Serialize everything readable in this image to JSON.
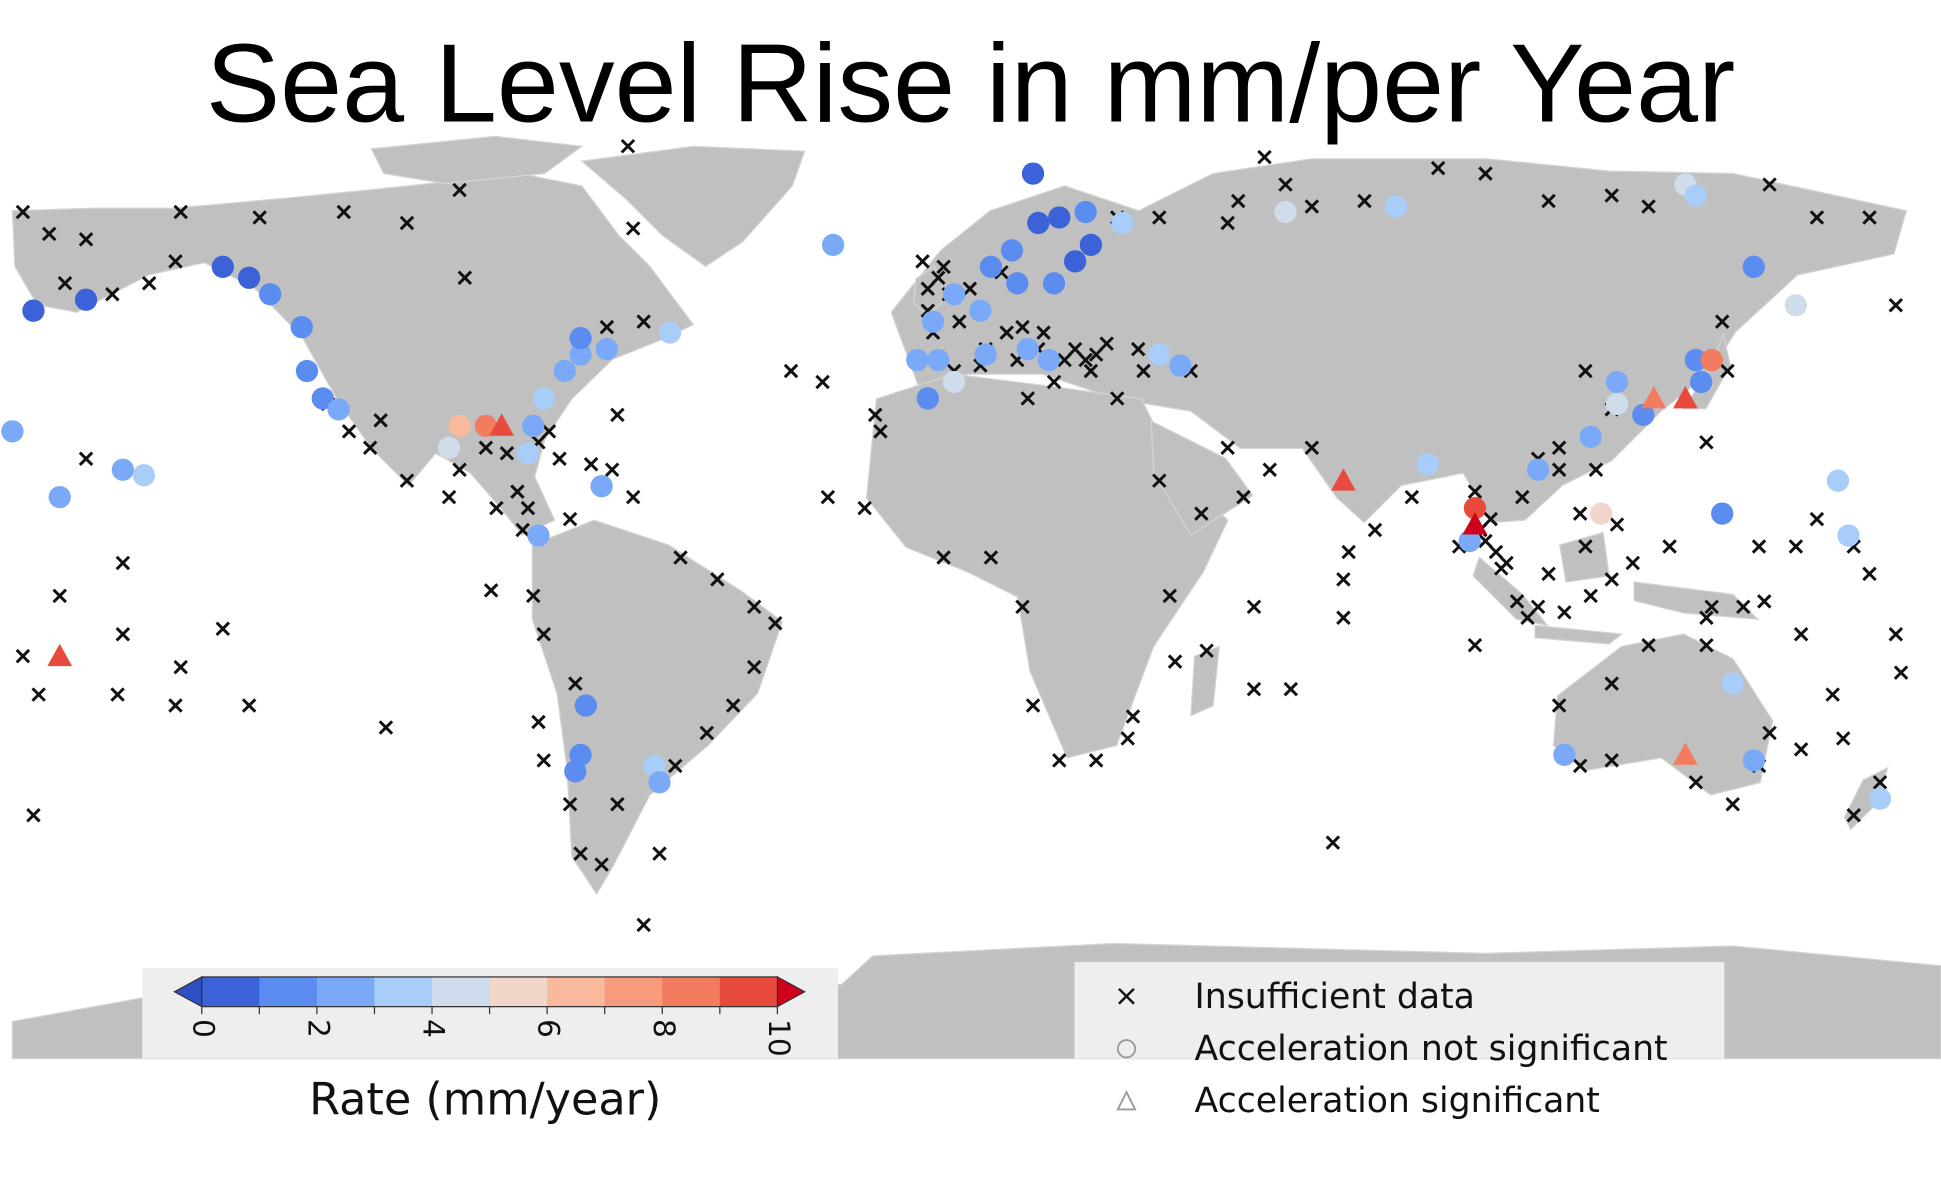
{
  "chart_data": {
    "type": "scatter",
    "title": "Sea Level Rise in mm/per Year",
    "colorbar": {
      "label": "Rate (mm/year)",
      "range": [
        0,
        10
      ],
      "ticks": [
        "0",
        "2",
        "4",
        "6",
        "8",
        "10"
      ],
      "colors": [
        "#3b62d9",
        "#5b8cf0",
        "#7aa9f7",
        "#a9cdf9",
        "#cfdcec",
        "#f1d6cc",
        "#f9b99d",
        "#f89b7c",
        "#f37b60",
        "#e84b3e"
      ],
      "under_color": "#2f4fc6",
      "over_color": "#d0021b"
    },
    "legend": {
      "placement": "bottom-right",
      "items": [
        {
          "marker": "x",
          "label": "Insufficient data"
        },
        {
          "marker": "circle",
          "label": "Acceleration not significant"
        },
        {
          "marker": "triangle",
          "label": "Acceleration significant"
        }
      ]
    },
    "insufficient_data": [
      [
        -178,
        65
      ],
      [
        -173,
        61
      ],
      [
        -166,
        60
      ],
      [
        -148,
        65
      ],
      [
        -133,
        64
      ],
      [
        -117,
        65
      ],
      [
        -105,
        63
      ],
      [
        -63,
        77
      ],
      [
        -62,
        62
      ],
      [
        -95,
        69
      ],
      [
        -94,
        53
      ],
      [
        -154,
        52
      ],
      [
        -149,
        56
      ],
      [
        -161,
        50
      ],
      [
        -116,
        25
      ],
      [
        -112,
        22
      ],
      [
        -105,
        16
      ],
      [
        -97,
        13
      ],
      [
        -88,
        11
      ],
      [
        -83,
        7
      ],
      [
        -74,
        9
      ],
      [
        -62,
        13
      ],
      [
        -65,
        28
      ],
      [
        -60,
        45
      ],
      [
        -67,
        44
      ],
      [
        -53,
        2
      ],
      [
        -46,
        -2
      ],
      [
        -39,
        -7
      ],
      [
        -35,
        -10
      ],
      [
        -39,
        -18
      ],
      [
        -43,
        -25
      ],
      [
        -48,
        -30
      ],
      [
        -54,
        -36
      ],
      [
        -65,
        -43
      ],
      [
        -68,
        -54
      ],
      [
        -72,
        -52
      ],
      [
        -60,
        -65
      ],
      [
        -57,
        -52
      ],
      [
        -73,
        -21
      ],
      [
        -79,
        -12
      ],
      [
        -81,
        -5
      ],
      [
        -80,
        -28
      ],
      [
        -79,
        -35
      ],
      [
        -74,
        -43
      ],
      [
        -89,
        -4
      ],
      [
        -109,
        -29
      ],
      [
        -135,
        -25
      ],
      [
        -149,
        -25
      ],
      [
        -148,
        -18
      ],
      [
        -159,
        -12
      ],
      [
        -171,
        -5
      ],
      [
        -178,
        -16
      ],
      [
        -175,
        -23
      ],
      [
        -160,
        -23
      ],
      [
        -176,
        -45
      ],
      [
        -140,
        -11
      ],
      [
        -159,
        1
      ],
      [
        -166,
        20
      ],
      [
        -170,
        52
      ],
      [
        -32,
        36
      ],
      [
        -26,
        34
      ],
      [
        -16,
        28
      ],
      [
        -15,
        25
      ],
      [
        -25,
        13
      ],
      [
        -18,
        11
      ],
      [
        -3,
        2
      ],
      [
        6,
        2
      ],
      [
        12,
        -7
      ],
      [
        14,
        -25
      ],
      [
        19,
        -35
      ],
      [
        26,
        -35
      ],
      [
        32,
        -31
      ],
      [
        33,
        -27
      ],
      [
        40,
        -5
      ],
      [
        41,
        -17
      ],
      [
        47,
        -15
      ],
      [
        56,
        -22
      ],
      [
        63,
        -22
      ],
      [
        56,
        -7
      ],
      [
        73,
        -9
      ],
      [
        71,
        -50
      ],
      [
        73,
        -2
      ],
      [
        74,
        3
      ],
      [
        79,
        7
      ],
      [
        67,
        22
      ],
      [
        59,
        18
      ],
      [
        51,
        22
      ],
      [
        54,
        13
      ],
      [
        46,
        10
      ],
      [
        38,
        16
      ],
      [
        30,
        31
      ],
      [
        25,
        36
      ],
      [
        18,
        34
      ],
      [
        11,
        38
      ],
      [
        4,
        37
      ],
      [
        -7,
        56
      ],
      [
        -6,
        51
      ],
      [
        -5,
        43
      ],
      [
        -1,
        36
      ],
      [
        13,
        31
      ],
      [
        34,
        40
      ],
      [
        44,
        36
      ],
      [
        98,
        -14
      ],
      [
        103,
        0
      ],
      [
        108,
        -9
      ],
      [
        112,
        -1
      ],
      [
        119,
        4
      ],
      [
        124,
        -2
      ],
      [
        128,
        1
      ],
      [
        135,
        4
      ],
      [
        131,
        -14
      ],
      [
        142,
        -9
      ],
      [
        149,
        -7
      ],
      [
        152,
        4
      ],
      [
        159,
        4
      ],
      [
        163,
        9
      ],
      [
        170,
        4
      ],
      [
        173,
        -1
      ],
      [
        166,
        -23
      ],
      [
        168,
        -31
      ],
      [
        160,
        -33
      ],
      [
        154,
        -30
      ],
      [
        152,
        -36
      ],
      [
        147,
        -43
      ],
      [
        140,
        -39
      ],
      [
        124,
        -35
      ],
      [
        118,
        -36
      ],
      [
        114,
        -25
      ],
      [
        124,
        -21
      ],
      [
        142,
        -14
      ],
      [
        153,
        -6
      ],
      [
        160,
        -12
      ],
      [
        143,
        -7
      ],
      [
        178,
        -12
      ],
      [
        179,
        -19
      ],
      [
        175,
        -39
      ],
      [
        170,
        -45
      ],
      [
        178,
        48
      ],
      [
        173,
        64
      ],
      [
        163,
        64
      ],
      [
        154,
        70
      ],
      [
        131,
        66
      ],
      [
        124,
        68
      ],
      [
        112,
        67
      ],
      [
        100,
        72
      ],
      [
        91,
        73
      ],
      [
        77,
        67
      ],
      [
        67,
        66
      ],
      [
        62,
        70
      ],
      [
        58,
        75
      ],
      [
        51,
        63
      ],
      [
        53,
        67
      ],
      [
        38,
        64
      ],
      [
        30,
        64
      ],
      [
        119,
        36
      ],
      [
        124,
        29
      ],
      [
        121,
        18
      ],
      [
        114,
        18
      ],
      [
        107,
        13
      ],
      [
        98,
        14
      ],
      [
        95,
        4
      ],
      [
        86,
        13
      ],
      [
        142,
        23
      ],
      [
        146,
        36
      ],
      [
        145,
        45
      ],
      [
        0,
        45
      ],
      [
        5,
        40
      ],
      [
        12,
        44
      ],
      [
        15,
        40
      ],
      [
        20,
        38
      ],
      [
        24,
        38
      ],
      [
        28,
        41
      ],
      [
        35,
        36
      ],
      [
        -2,
        50
      ],
      [
        8,
        54
      ],
      [
        -4,
        53
      ],
      [
        2,
        51
      ],
      [
        -3,
        55
      ],
      [
        -6,
        47
      ],
      [
        9,
        43
      ],
      [
        16,
        43
      ],
      [
        22,
        40
      ],
      [
        26,
        39
      ],
      [
        -90,
        22
      ],
      [
        -86,
        21
      ],
      [
        -80,
        23
      ],
      [
        -78,
        25
      ],
      [
        -76,
        20
      ],
      [
        -70,
        19
      ],
      [
        -66,
        18
      ],
      [
        -95,
        18
      ],
      [
        100,
        5
      ],
      [
        102,
        3
      ],
      [
        104,
        1
      ],
      [
        106,
        -6
      ],
      [
        110,
        -7
      ],
      [
        115,
        -8
      ],
      [
        120,
        -5
      ],
      [
        125,
        8
      ],
      [
        122,
        10
      ],
      [
        118,
        10
      ],
      [
        114,
        22
      ],
      [
        110,
        20
      ],
      [
        99,
        7
      ],
      [
        101,
        9
      ],
      [
        -84,
        14
      ],
      [
        -82,
        11
      ],
      [
        -120,
        30
      ],
      [
        -110,
        27
      ]
    ],
    "not_significant": [
      [
        -176,
        47,
        0.5
      ],
      [
        -166,
        49,
        0.5
      ],
      [
        -140,
        55,
        0.5
      ],
      [
        -135,
        53,
        0.5
      ],
      [
        -131,
        50,
        1
      ],
      [
        -125,
        44,
        1
      ],
      [
        -124,
        36,
        1
      ],
      [
        -121,
        31,
        1.5
      ],
      [
        -118,
        29,
        2.5
      ],
      [
        -180,
        25,
        2.5
      ],
      [
        -159,
        18,
        2.5
      ],
      [
        -155,
        17,
        3.5
      ],
      [
        -171,
        13,
        2.5
      ],
      [
        -97,
        22,
        4.5
      ],
      [
        -95,
        26,
        6.5
      ],
      [
        -90,
        26,
        8.5
      ],
      [
        -82,
        21,
        3
      ],
      [
        -81,
        26,
        2.5
      ],
      [
        -79,
        31,
        3
      ],
      [
        -75,
        36,
        2.5
      ],
      [
        -72,
        39,
        2.5
      ],
      [
        -72,
        42,
        1
      ],
      [
        -67,
        40,
        2.5
      ],
      [
        -55,
        43,
        3
      ],
      [
        -80,
        6,
        2.5
      ],
      [
        -68,
        15,
        2.5
      ],
      [
        -24,
        59,
        2.5
      ],
      [
        -71,
        -25,
        1
      ],
      [
        -72,
        -34,
        1
      ],
      [
        -73,
        -37,
        1
      ],
      [
        -58,
        -36,
        3
      ],
      [
        -57,
        -39,
        2.5
      ],
      [
        14,
        72,
        0.5
      ],
      [
        15,
        63,
        0.5
      ],
      [
        19,
        64,
        0.5
      ],
      [
        24,
        65,
        1
      ],
      [
        25,
        59,
        0.5
      ],
      [
        22,
        56,
        0.5
      ],
      [
        10,
        58,
        1
      ],
      [
        6,
        55,
        1.5
      ],
      [
        11,
        52,
        1
      ],
      [
        18,
        52,
        1
      ],
      [
        -1,
        50,
        2
      ],
      [
        4,
        47,
        2
      ],
      [
        -5,
        45,
        2
      ],
      [
        -8,
        38,
        2.5
      ],
      [
        -6,
        31,
        1.5
      ],
      [
        -4,
        38,
        2
      ],
      [
        5,
        39,
        2.5
      ],
      [
        13,
        40,
        2
      ],
      [
        17,
        38,
        2.5
      ],
      [
        31,
        63,
        3
      ],
      [
        38,
        39,
        3
      ],
      [
        42,
        37,
        2.5
      ],
      [
        -1,
        34,
        4
      ],
      [
        62,
        65,
        4.5
      ],
      [
        83,
        66,
        3.5
      ],
      [
        138,
        70,
        4.5
      ],
      [
        140,
        68,
        3
      ],
      [
        151,
        55,
        1
      ],
      [
        159,
        48,
        4
      ],
      [
        89,
        19,
        3.5
      ],
      [
        98,
        11,
        9.5
      ],
      [
        97,
        5,
        2.5
      ],
      [
        110,
        18,
        2.5
      ],
      [
        122,
        10,
        5.5
      ],
      [
        120,
        24,
        2.5
      ],
      [
        125,
        34,
        2.5
      ],
      [
        125,
        30,
        4
      ],
      [
        130,
        28,
        1
      ],
      [
        140,
        38,
        1
      ],
      [
        143,
        38,
        8.5
      ],
      [
        141,
        34,
        1.5
      ],
      [
        167,
        16,
        3
      ],
      [
        145,
        10,
        1.5
      ],
      [
        169,
        6,
        3
      ],
      [
        115,
        -34,
        2
      ],
      [
        151,
        -35,
        2
      ],
      [
        147,
        -21,
        3
      ],
      [
        175,
        -42,
        3
      ]
    ],
    "significant": [
      [
        -87,
        26,
        9.5
      ],
      [
        73,
        16,
        9.5
      ],
      [
        98,
        8,
        10
      ],
      [
        132,
        31,
        8.5
      ],
      [
        138,
        31,
        9.5
      ],
      [
        138,
        -34,
        8
      ],
      [
        -171,
        -16,
        9.5
      ]
    ]
  }
}
